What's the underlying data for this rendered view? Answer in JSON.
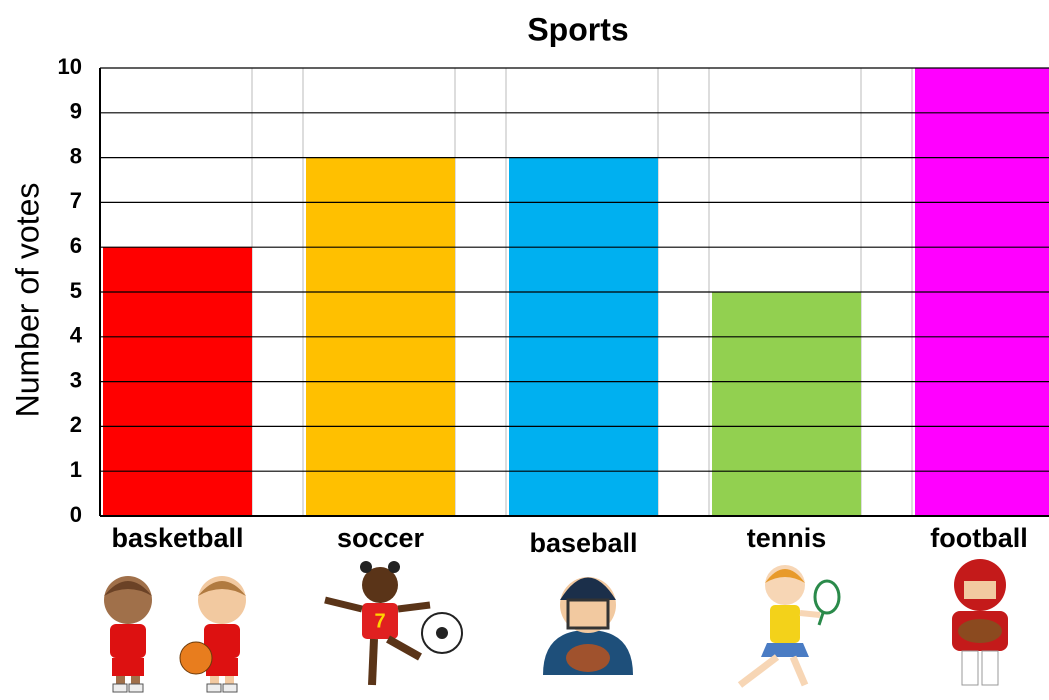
{
  "chart_data": {
    "type": "bar",
    "title": "Sports",
    "y_label": "Number of votes",
    "categories": [
      "basketball",
      "soccer",
      "baseball",
      "tennis",
      "football"
    ],
    "values": [
      6,
      8,
      8,
      5,
      10
    ],
    "colors": [
      "#ff0000",
      "#ffc000",
      "#00b0f0",
      "#92d050",
      "#ff00ff"
    ],
    "ylim": [
      0,
      10
    ],
    "yticks": [
      0,
      1,
      2,
      3,
      4,
      5,
      6,
      7,
      8,
      9,
      10
    ],
    "grid": true
  }
}
